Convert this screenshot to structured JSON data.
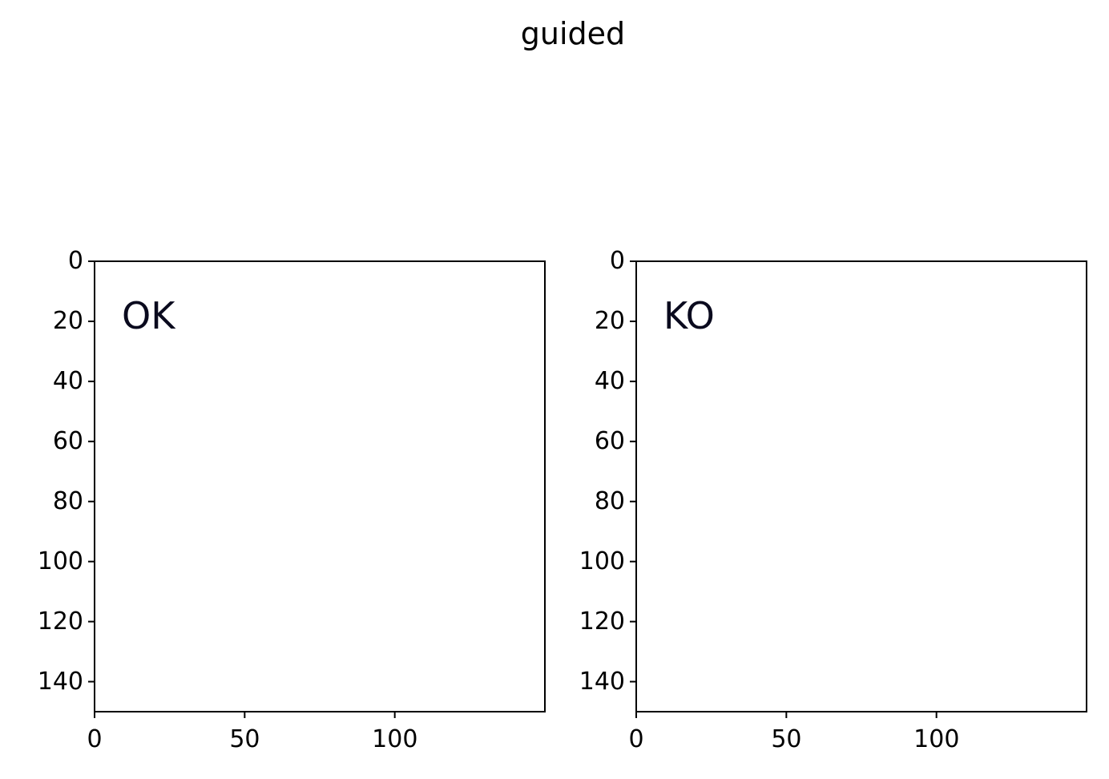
{
  "figure": {
    "title": "guided"
  },
  "panels": [
    {
      "label": "OK",
      "x_ticks": [
        "0",
        "50",
        "100"
      ],
      "y_ticks": [
        "0",
        "20",
        "40",
        "60",
        "80",
        "100",
        "120",
        "140"
      ],
      "x_range": [
        0,
        150
      ],
      "y_range": [
        0,
        150
      ],
      "colormap": "jet"
    },
    {
      "label": "KO",
      "x_ticks": [
        "0",
        "50",
        "100"
      ],
      "y_ticks": [
        "0",
        "20",
        "40",
        "60",
        "80",
        "100",
        "120",
        "140"
      ],
      "x_range": [
        0,
        150
      ],
      "y_range": [
        0,
        150
      ],
      "colormap": "jet"
    }
  ],
  "colors": {
    "background_blue": "#2e2ea8",
    "dark_blue": "#000080",
    "hot_red": "#d52a1a",
    "warm_yellow": "#e6d23a",
    "cool_green": "#3ec896",
    "spot_color": "#8c8cff"
  }
}
